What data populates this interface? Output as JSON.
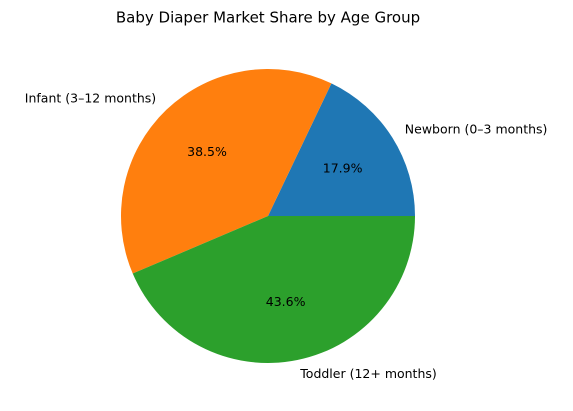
{
  "chart_data": {
    "type": "pie",
    "title": "Baby Diaper Market Share by Age Group",
    "categories": [
      "Newborn (0–3 months)",
      "Infant (3–12 months)",
      "Toddler (12+ months)"
    ],
    "values": [
      17.9,
      38.5,
      43.6
    ],
    "value_labels": [
      "17.9%",
      "38.5%",
      "43.6%"
    ],
    "colors": [
      "#1f77b4",
      "#ff7f0e",
      "#2ca02c"
    ]
  }
}
